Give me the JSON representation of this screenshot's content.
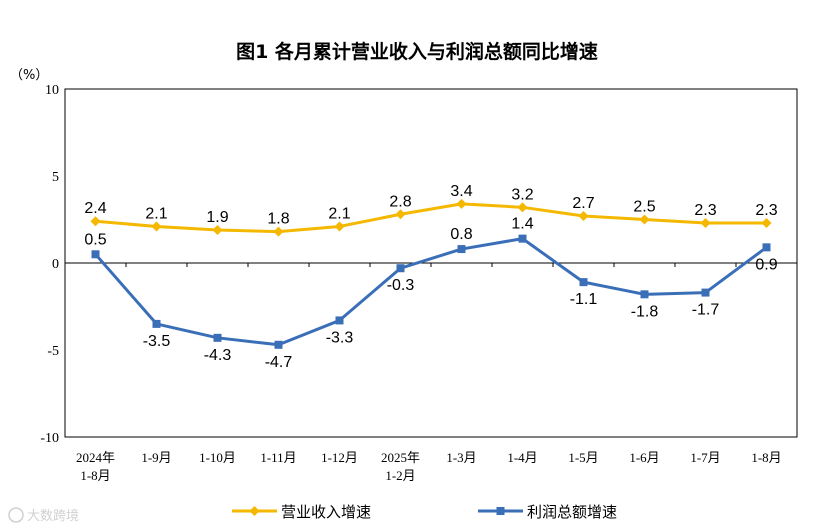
{
  "chart_data": {
    "type": "line",
    "title": "图1  各月累计营业收入与利润总额同比增速",
    "ylabel": "（%）",
    "ylim": [
      -10,
      10
    ],
    "yticks": [
      10,
      5,
      0,
      -5,
      -10
    ],
    "categories": [
      [
        "2024年",
        "1-8月"
      ],
      [
        "1-9月"
      ],
      [
        "1-10月"
      ],
      [
        "1-11月"
      ],
      [
        "1-12月"
      ],
      [
        "2025年",
        "1-2月"
      ],
      [
        "1-3月"
      ],
      [
        "1-4月"
      ],
      [
        "1-5月"
      ],
      [
        "1-6月"
      ],
      [
        "1-7月"
      ],
      [
        "1-8月"
      ]
    ],
    "series": [
      {
        "name": "营业收入增速",
        "color": "#F5B800",
        "marker": "diamond",
        "values": [
          2.4,
          2.1,
          1.9,
          1.8,
          2.1,
          2.8,
          3.4,
          3.2,
          2.7,
          2.5,
          2.3,
          2.3
        ],
        "labels": [
          "2.4",
          "2.1",
          "1.9",
          "1.8",
          "2.1",
          "2.8",
          "3.4",
          "3.2",
          "2.7",
          "2.5",
          "2.3",
          "2.3"
        ]
      },
      {
        "name": "利润总额增速",
        "color": "#3A6FB8",
        "marker": "square",
        "values": [
          0.5,
          -3.5,
          -4.3,
          -4.7,
          -3.3,
          -0.3,
          0.8,
          1.4,
          -1.1,
          -1.8,
          -1.7,
          0.9
        ],
        "labels": [
          "0.5",
          "-3.5",
          "-4.3",
          "-4.7",
          "-3.3",
          "-0.3",
          "0.8",
          "1.4",
          "-1.1",
          "-1.8",
          "-1.7",
          "0.9"
        ]
      }
    ],
    "legend_position": "bottom"
  },
  "watermark": "大数跨境"
}
